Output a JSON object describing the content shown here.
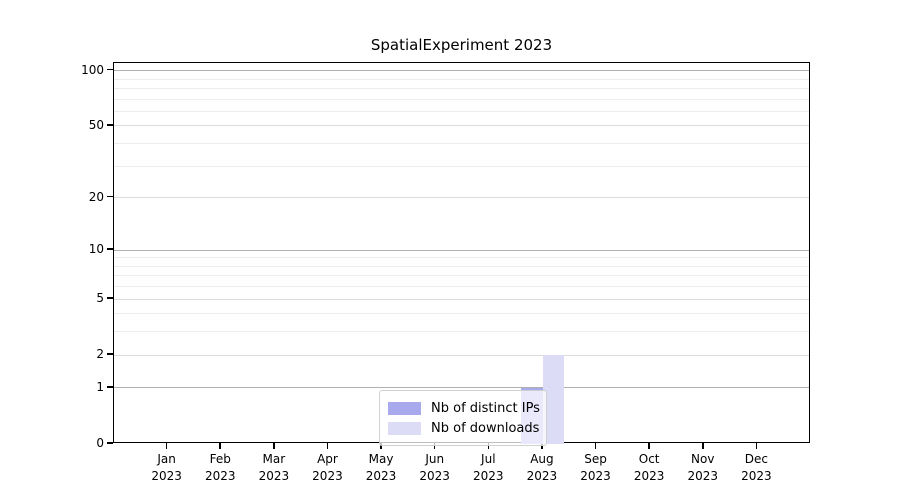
{
  "chart_data": {
    "type": "bar",
    "title": "SpatialExperiment 2023",
    "categories": [
      "Jan",
      "Feb",
      "Mar",
      "Apr",
      "May",
      "Jun",
      "Jul",
      "Aug",
      "Sep",
      "Oct",
      "Nov",
      "Dec"
    ],
    "x_year": "2023",
    "series": [
      {
        "name": "Nb of distinct IPs",
        "color": "#a9a9ee",
        "values": [
          0,
          0,
          0,
          0,
          0,
          0,
          0,
          1,
          0,
          0,
          0,
          0
        ]
      },
      {
        "name": "Nb of downloads",
        "color": "#dcdcf7",
        "values": [
          0,
          0,
          0,
          0,
          0,
          0,
          0,
          2,
          0,
          0,
          0,
          0
        ]
      }
    ],
    "y_scale": "log1p",
    "ylim": [
      0,
      110
    ],
    "y_ticks": [
      0,
      1,
      2,
      5,
      10,
      20,
      50,
      100
    ],
    "y_minor_gridlines": [
      3,
      4,
      6,
      7,
      8,
      9,
      30,
      40,
      60,
      70,
      80,
      90
    ],
    "grid": "horizontal",
    "legend_position": "bottom-center",
    "colors": {
      "major_gridline": "#b0b0b0",
      "mid_gridline": "#dcdcdc",
      "minor_gridline": "#ececec",
      "axis": "#000000",
      "background": "#ffffff"
    }
  }
}
